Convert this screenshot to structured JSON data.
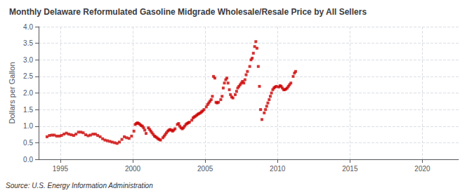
{
  "chart_data": {
    "type": "scatter",
    "title": "Monthly Delaware Reformulated Gasoline Midgrade Wholesale/Resale Price by All Sellers",
    "ylabel": "Dollars per Gallon",
    "annotations": [
      "Source: U.S. Energy Information Administration"
    ],
    "color": "#cc0000",
    "marker": "square",
    "grid": true,
    "xlim": [
      1993.5,
      2022.5
    ],
    "ylim": [
      0.0,
      4.0
    ],
    "xticks": [
      1995,
      2000,
      2005,
      2010,
      2015,
      2020
    ],
    "yticks": [
      {
        "value": 0.0,
        "label": "0.0"
      },
      0.5,
      {
        "value": 1.0,
        "label": "1.0"
      },
      1.5,
      {
        "value": 2.0,
        "label": "2.0"
      },
      2.5,
      {
        "value": 3.0,
        "label": "3.0"
      },
      3.5,
      {
        "value": 4.0,
        "label": "4.0"
      }
    ],
    "x": [
      1994.08,
      1994.25,
      1994.42,
      1994.58,
      1994.75,
      1994.92,
      1995.08,
      1995.25,
      1995.42,
      1995.58,
      1995.75,
      1995.92,
      1996.08,
      1996.25,
      1996.42,
      1996.58,
      1996.75,
      1996.92,
      1997.08,
      1997.25,
      1997.42,
      1997.58,
      1997.75,
      1997.92,
      1998.08,
      1998.25,
      1998.42,
      1998.58,
      1998.75,
      1998.92,
      1999.08,
      1999.25,
      1999.42,
      1999.58,
      1999.75,
      1999.92,
      2000.08,
      2000.17,
      2000.25,
      2000.33,
      2000.42,
      2000.5,
      2000.58,
      2000.67,
      2000.75,
      2000.83,
      2000.92,
      2001.08,
      2001.17,
      2001.25,
      2001.33,
      2001.42,
      2001.5,
      2001.58,
      2001.67,
      2001.75,
      2001.83,
      2001.92,
      2002.08,
      2002.17,
      2002.25,
      2002.33,
      2002.42,
      2002.5,
      2002.58,
      2002.67,
      2002.75,
      2002.83,
      2002.92,
      2003.08,
      2003.17,
      2003.25,
      2003.33,
      2003.42,
      2003.5,
      2003.58,
      2003.67,
      2003.75,
      2003.83,
      2003.92,
      2004.08,
      2004.17,
      2004.25,
      2004.33,
      2004.42,
      2004.5,
      2004.58,
      2004.67,
      2004.75,
      2004.83,
      2004.92,
      2005.08,
      2005.17,
      2005.25,
      2005.33,
      2005.42,
      2005.5,
      2005.58,
      2005.67,
      2005.75,
      2005.83,
      2005.92,
      2006.08,
      2006.17,
      2006.25,
      2006.33,
      2006.42,
      2006.5,
      2006.58,
      2006.67,
      2006.75,
      2006.83,
      2006.92,
      2007.08,
      2007.17,
      2007.25,
      2007.33,
      2007.42,
      2007.5,
      2007.58,
      2007.67,
      2007.75,
      2007.83,
      2007.92,
      2008.08,
      2008.17,
      2008.25,
      2008.33,
      2008.42,
      2008.5,
      2008.58,
      2008.67,
      2008.75,
      2008.83,
      2008.92,
      2009.08,
      2009.17,
      2009.25,
      2009.33,
      2009.42,
      2009.5,
      2009.58,
      2009.67,
      2009.75,
      2009.83,
      2009.92,
      2010.08,
      2010.17,
      2010.25,
      2010.33,
      2010.42,
      2010.5,
      2010.58,
      2010.67,
      2010.75,
      2010.83,
      2010.92,
      2011.08,
      2011.17,
      2011.25
    ],
    "values": [
      0.68,
      0.72,
      0.73,
      0.73,
      0.7,
      0.7,
      0.72,
      0.76,
      0.79,
      0.76,
      0.74,
      0.72,
      0.76,
      0.82,
      0.82,
      0.8,
      0.74,
      0.71,
      0.73,
      0.76,
      0.76,
      0.72,
      0.68,
      0.62,
      0.58,
      0.56,
      0.54,
      0.52,
      0.5,
      0.48,
      0.52,
      0.6,
      0.68,
      0.65,
      0.63,
      0.7,
      0.85,
      1.05,
      1.08,
      1.1,
      1.08,
      1.05,
      1.02,
      1.0,
      0.95,
      0.88,
      0.78,
      0.95,
      0.9,
      0.85,
      0.8,
      0.75,
      0.7,
      0.68,
      0.65,
      0.62,
      0.6,
      0.58,
      0.65,
      0.7,
      0.75,
      0.8,
      0.85,
      0.88,
      0.9,
      0.88,
      0.85,
      0.88,
      0.92,
      1.05,
      1.08,
      1.0,
      0.95,
      0.92,
      0.95,
      1.0,
      1.05,
      1.08,
      1.1,
      1.12,
      1.18,
      1.25,
      1.28,
      1.3,
      1.33,
      1.36,
      1.38,
      1.4,
      1.43,
      1.46,
      1.5,
      1.58,
      1.65,
      1.7,
      1.75,
      1.8,
      1.9,
      2.5,
      2.45,
      1.72,
      1.7,
      1.72,
      1.8,
      1.9,
      2.15,
      2.3,
      2.4,
      2.45,
      2.3,
      2.1,
      1.95,
      1.88,
      1.85,
      1.95,
      2.05,
      2.15,
      2.2,
      2.25,
      2.3,
      2.35,
      2.3,
      2.4,
      2.55,
      2.65,
      2.8,
      3.0,
      3.05,
      3.2,
      3.4,
      3.55,
      3.35,
      2.8,
      2.2,
      1.5,
      1.2,
      1.4,
      1.5,
      1.6,
      1.7,
      1.8,
      1.9,
      2.0,
      2.1,
      2.15,
      2.18,
      2.2,
      2.18,
      2.22,
      2.2,
      2.15,
      2.1,
      2.1,
      2.12,
      2.15,
      2.2,
      2.25,
      2.3,
      2.5,
      2.6,
      2.65
    ]
  }
}
